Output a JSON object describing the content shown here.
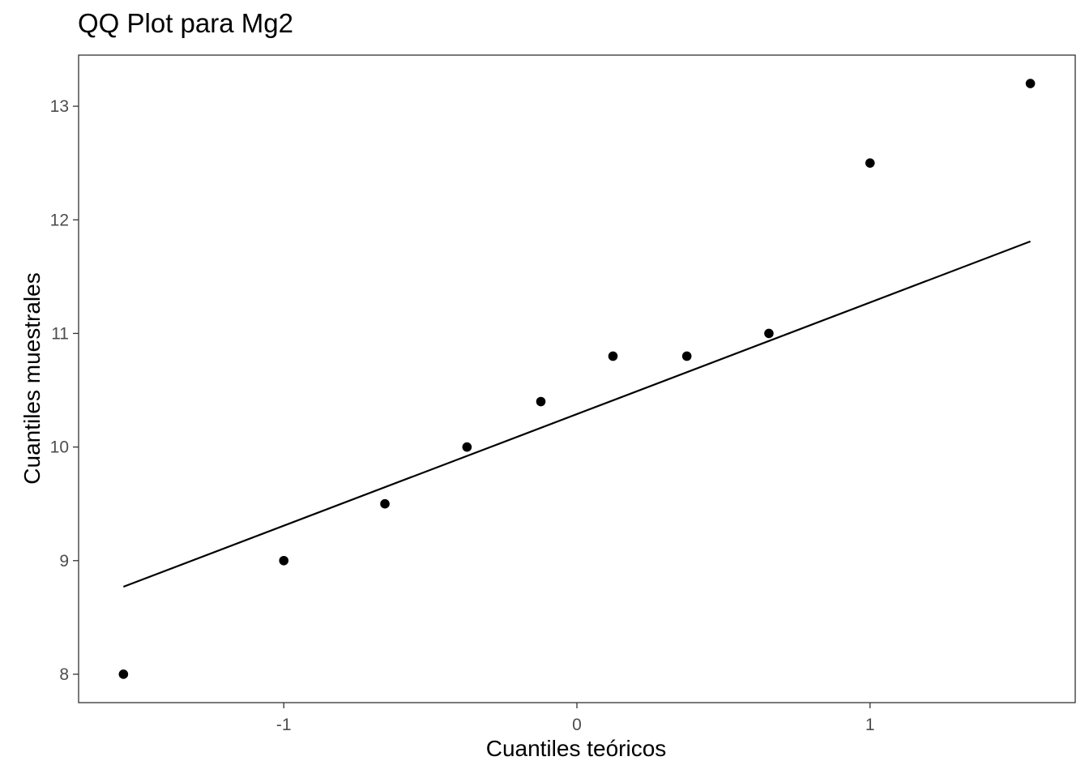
{
  "chart_data": {
    "type": "scatter",
    "title": "QQ Plot para Mg2",
    "xlabel": "Cuantiles teóricos",
    "ylabel": "Cuantiles muestrales",
    "x_ticks": [
      -1,
      0,
      1
    ],
    "y_ticks": [
      8,
      9,
      10,
      11,
      12,
      13
    ],
    "xlim": [
      -1.7,
      1.7
    ],
    "ylim": [
      7.75,
      13.45
    ],
    "grid": false,
    "legend": null,
    "series": [
      {
        "name": "sample",
        "kind": "points",
        "x": [
          -1.547,
          -1.0,
          -0.655,
          -0.375,
          -0.123,
          0.123,
          0.375,
          0.655,
          1.0,
          1.547
        ],
        "y": [
          8.0,
          9.0,
          9.5,
          10.0,
          10.4,
          10.8,
          10.8,
          11.0,
          12.5,
          13.2
        ]
      },
      {
        "name": "qq-line",
        "kind": "line",
        "x": [
          -1.547,
          1.547
        ],
        "y": [
          8.77,
          11.81
        ]
      }
    ]
  }
}
